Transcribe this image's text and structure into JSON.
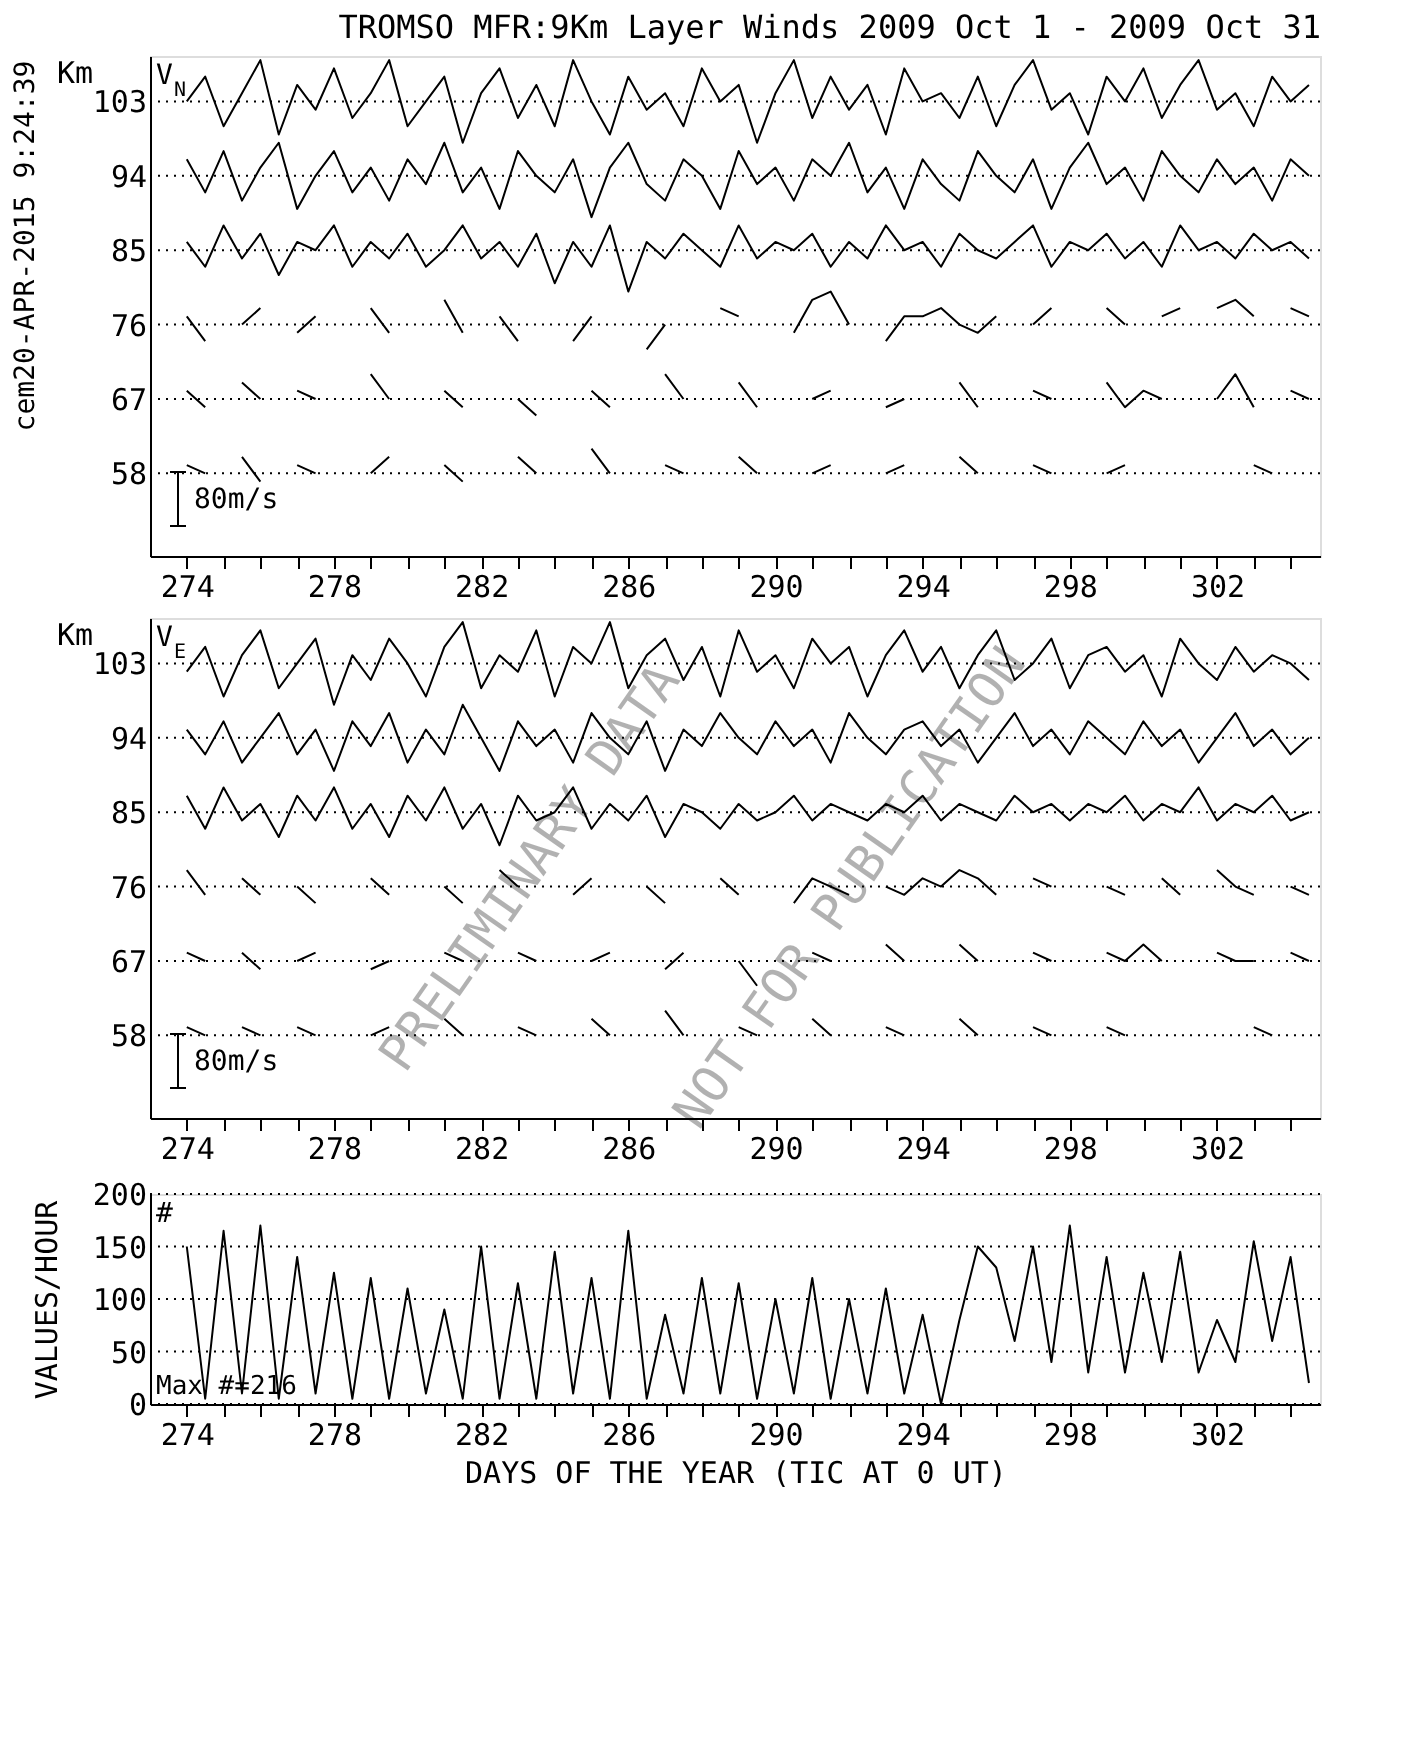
{
  "chart_data": [
    {
      "type": "line",
      "title": "TROMSO MFR:9Km Layer Winds 2009 Oct  1 - 2009 Oct 31",
      "ylabel": "Km",
      "grid": "y",
      "xlim": [
        273,
        304.8
      ],
      "ylim": [
        48,
        108.5
      ],
      "xticks": [
        274,
        {
          "value": 275,
          "label": null
        },
        {
          "value": 276,
          "label": null
        },
        {
          "value": 277,
          "label": null
        },
        278,
        {
          "value": 279,
          "label": null
        },
        {
          "value": 280,
          "label": null
        },
        {
          "value": 281,
          "label": null
        },
        282,
        {
          "value": 283,
          "label": null
        },
        {
          "value": 284,
          "label": null
        },
        {
          "value": 285,
          "label": null
        },
        286,
        {
          "value": 287,
          "label": null
        },
        {
          "value": 288,
          "label": null
        },
        {
          "value": 289,
          "label": null
        },
        290,
        {
          "value": 291,
          "label": null
        },
        {
          "value": 292,
          "label": null
        },
        {
          "value": 293,
          "label": null
        },
        294,
        {
          "value": 295,
          "label": null
        },
        {
          "value": 296,
          "label": null
        },
        {
          "value": 297,
          "label": null
        },
        298,
        {
          "value": 299,
          "label": null
        },
        {
          "value": 300,
          "label": null
        },
        {
          "value": 301,
          "label": null
        },
        302,
        {
          "value": 303,
          "label": null
        },
        {
          "value": 304,
          "label": null
        }
      ],
      "yticks": [
        58,
        67,
        76,
        85,
        94,
        103
      ],
      "annotations": [
        "cem20-APR-2015  9:24:39",
        "V$_{N}$",
        "80m/s"
      ],
      "x": [
        274,
        274.5,
        275,
        275.5,
        276,
        276.5,
        277,
        277.5,
        278,
        278.5,
        279,
        279.5,
        280,
        280.5,
        281,
        281.5,
        282,
        282.5,
        283,
        283.5,
        284,
        284.5,
        285,
        285.5,
        286,
        286.5,
        287,
        287.5,
        288,
        288.5,
        289,
        289.5,
        290,
        290.5,
        291,
        291.5,
        292,
        292.5,
        293,
        293.5,
        294,
        294.5,
        295,
        295.5,
        296,
        296.5,
        297,
        297.5,
        298,
        298.5,
        299,
        299.5,
        300,
        300.5,
        301,
        301.5,
        302,
        302.5,
        303,
        303.5,
        304,
        304.5
      ],
      "series": [
        {
          "color": "#000000",
          "values": [
            103,
            106,
            100,
            104,
            108,
            99,
            105,
            102,
            107,
            101,
            104,
            108,
            100,
            103,
            106,
            98,
            104,
            107,
            101,
            105,
            100,
            108,
            103,
            99,
            106,
            102,
            104,
            100,
            107,
            103,
            105,
            98,
            104,
            108,
            101,
            106,
            102,
            105,
            99,
            107,
            103,
            104,
            101,
            106,
            100,
            105,
            108,
            102,
            104,
            99,
            106,
            103,
            107,
            101,
            105,
            108,
            102,
            104,
            100,
            106,
            103,
            105
          ]
        },
        {
          "color": "#000000",
          "values": [
            96,
            92,
            97,
            91,
            95,
            98,
            90,
            94,
            97,
            92,
            95,
            91,
            96,
            93,
            98,
            92,
            95,
            90,
            97,
            94,
            92,
            96,
            89,
            95,
            98,
            93,
            91,
            96,
            94,
            90,
            97,
            93,
            95,
            91,
            96,
            94,
            98,
            92,
            95,
            90,
            96,
            93,
            91,
            97,
            94,
            92,
            96,
            90,
            95,
            98,
            93,
            95,
            91,
            97,
            94,
            92,
            96,
            93,
            95,
            91,
            96,
            94
          ]
        },
        {
          "color": "#000000",
          "values": [
            86,
            83,
            88,
            84,
            87,
            82,
            86,
            85,
            88,
            83,
            86,
            84,
            87,
            83,
            85,
            88,
            84,
            86,
            83,
            87,
            81,
            86,
            83,
            88,
            80,
            86,
            84,
            87,
            85,
            83,
            88,
            84,
            86,
            85,
            87,
            83,
            86,
            84,
            88,
            85,
            86,
            83,
            87,
            85,
            84,
            86,
            88,
            83,
            86,
            85,
            87,
            84,
            86,
            83,
            88,
            85,
            86,
            84,
            87,
            85,
            86,
            84
          ]
        },
        {
          "color": "#000000",
          "values": [
            77,
            74,
            null,
            76,
            78,
            null,
            75,
            77,
            null,
            null,
            78,
            75,
            null,
            null,
            79,
            75,
            null,
            77,
            74,
            null,
            null,
            74,
            77,
            null,
            null,
            73,
            76,
            null,
            null,
            78,
            77,
            null,
            null,
            75,
            79,
            80,
            76,
            null,
            74,
            77,
            77,
            78,
            76,
            75,
            77,
            null,
            76,
            78,
            null,
            null,
            78,
            76,
            null,
            77,
            78,
            null,
            78,
            79,
            77,
            null,
            78,
            77
          ]
        },
        {
          "color": "#000000",
          "values": [
            68,
            66,
            null,
            69,
            67,
            null,
            68,
            67,
            null,
            null,
            70,
            67,
            null,
            null,
            68,
            66,
            null,
            null,
            67,
            65,
            null,
            null,
            68,
            66,
            null,
            null,
            70,
            67,
            null,
            null,
            69,
            66,
            null,
            null,
            67,
            68,
            null,
            null,
            66,
            67,
            null,
            null,
            69,
            66,
            null,
            null,
            68,
            67,
            null,
            null,
            69,
            66,
            68,
            67,
            null,
            null,
            67,
            70,
            66,
            null,
            68,
            67
          ]
        },
        {
          "color": "#000000",
          "values": [
            59,
            58,
            null,
            60,
            57,
            null,
            59,
            58,
            null,
            null,
            58,
            60,
            null,
            null,
            59,
            57,
            null,
            null,
            60,
            58,
            null,
            null,
            61,
            58,
            null,
            null,
            59,
            58,
            null,
            null,
            60,
            58,
            null,
            null,
            58,
            59,
            null,
            null,
            58,
            59,
            null,
            null,
            60,
            58,
            null,
            null,
            59,
            58,
            null,
            null,
            58,
            59,
            null,
            null,
            null,
            null,
            null,
            null,
            59,
            58,
            null,
            null
          ]
        }
      ]
    },
    {
      "type": "line",
      "ylabel": "Km",
      "grid": "y",
      "xlim": [
        273,
        304.8
      ],
      "ylim": [
        48,
        108.5
      ],
      "xticks": [
        274,
        {
          "value": 275,
          "label": null
        },
        {
          "value": 276,
          "label": null
        },
        {
          "value": 277,
          "label": null
        },
        278,
        {
          "value": 279,
          "label": null
        },
        {
          "value": 280,
          "label": null
        },
        {
          "value": 281,
          "label": null
        },
        282,
        {
          "value": 283,
          "label": null
        },
        {
          "value": 284,
          "label": null
        },
        {
          "value": 285,
          "label": null
        },
        286,
        {
          "value": 287,
          "label": null
        },
        {
          "value": 288,
          "label": null
        },
        {
          "value": 289,
          "label": null
        },
        290,
        {
          "value": 291,
          "label": null
        },
        {
          "value": 292,
          "label": null
        },
        {
          "value": 293,
          "label": null
        },
        294,
        {
          "value": 295,
          "label": null
        },
        {
          "value": 296,
          "label": null
        },
        {
          "value": 297,
          "label": null
        },
        298,
        {
          "value": 299,
          "label": null
        },
        {
          "value": 300,
          "label": null
        },
        {
          "value": 301,
          "label": null
        },
        302,
        {
          "value": 303,
          "label": null
        },
        {
          "value": 304,
          "label": null
        }
      ],
      "yticks": [
        58,
        67,
        76,
        85,
        94,
        103
      ],
      "annotations": [
        "V$_{E}$",
        "80m/s",
        "PRELIMINARY DATA",
        "NOT FOR PUBLICATION"
      ],
      "x": [
        274,
        274.5,
        275,
        275.5,
        276,
        276.5,
        277,
        277.5,
        278,
        278.5,
        279,
        279.5,
        280,
        280.5,
        281,
        281.5,
        282,
        282.5,
        283,
        283.5,
        284,
        284.5,
        285,
        285.5,
        286,
        286.5,
        287,
        287.5,
        288,
        288.5,
        289,
        289.5,
        290,
        290.5,
        291,
        291.5,
        292,
        292.5,
        293,
        293.5,
        294,
        294.5,
        295,
        295.5,
        296,
        296.5,
        297,
        297.5,
        298,
        298.5,
        299,
        299.5,
        300,
        300.5,
        301,
        301.5,
        302,
        302.5,
        303,
        303.5,
        304,
        304.5
      ],
      "series": [
        {
          "color": "#000000",
          "values": [
            102,
            105,
            99,
            104,
            107,
            100,
            103,
            106,
            98,
            104,
            101,
            106,
            103,
            99,
            105,
            108,
            100,
            104,
            102,
            107,
            99,
            105,
            103,
            108,
            100,
            104,
            106,
            101,
            105,
            99,
            107,
            102,
            104,
            100,
            106,
            103,
            105,
            99,
            104,
            107,
            102,
            105,
            100,
            104,
            107,
            101,
            103,
            106,
            100,
            104,
            105,
            102,
            104,
            99,
            106,
            103,
            101,
            105,
            102,
            104,
            103,
            101
          ]
        },
        {
          "color": "#000000",
          "values": [
            95,
            92,
            96,
            91,
            94,
            97,
            92,
            95,
            90,
            96,
            93,
            97,
            91,
            95,
            92,
            98,
            94,
            90,
            96,
            93,
            95,
            91,
            97,
            94,
            92,
            96,
            90,
            95,
            93,
            97,
            94,
            92,
            96,
            93,
            95,
            91,
            97,
            94,
            92,
            95,
            96,
            93,
            95,
            91,
            94,
            97,
            93,
            95,
            92,
            96,
            94,
            92,
            96,
            93,
            95,
            91,
            94,
            97,
            93,
            95,
            92,
            94
          ]
        },
        {
          "color": "#000000",
          "values": [
            87,
            83,
            88,
            84,
            86,
            82,
            87,
            84,
            88,
            83,
            86,
            82,
            87,
            84,
            88,
            83,
            86,
            81,
            87,
            84,
            85,
            88,
            83,
            86,
            84,
            87,
            82,
            86,
            85,
            83,
            86,
            84,
            85,
            87,
            84,
            86,
            85,
            84,
            86,
            85,
            87,
            84,
            86,
            85,
            84,
            87,
            85,
            86,
            84,
            86,
            85,
            87,
            84,
            86,
            85,
            88,
            84,
            86,
            85,
            87,
            84,
            85
          ]
        },
        {
          "color": "#000000",
          "values": [
            78,
            75,
            null,
            77,
            75,
            null,
            76,
            74,
            null,
            null,
            77,
            75,
            null,
            null,
            76,
            74,
            null,
            78,
            76,
            null,
            null,
            75,
            77,
            null,
            null,
            76,
            74,
            null,
            null,
            77,
            75,
            null,
            null,
            74,
            77,
            76,
            75,
            null,
            76,
            75,
            77,
            76,
            78,
            77,
            75,
            null,
            77,
            76,
            null,
            null,
            76,
            75,
            null,
            77,
            75,
            null,
            78,
            76,
            75,
            null,
            76,
            75
          ]
        },
        {
          "color": "#000000",
          "values": [
            68,
            67,
            null,
            68,
            66,
            null,
            67,
            68,
            null,
            null,
            66,
            67,
            null,
            null,
            68,
            67,
            null,
            null,
            68,
            67,
            null,
            null,
            67,
            68,
            null,
            null,
            66,
            68,
            null,
            null,
            67,
            64,
            null,
            null,
            68,
            67,
            null,
            null,
            69,
            67,
            null,
            null,
            69,
            67,
            null,
            null,
            68,
            67,
            null,
            null,
            68,
            67,
            69,
            67,
            null,
            null,
            68,
            67,
            67,
            null,
            68,
            67
          ]
        },
        {
          "color": "#000000",
          "values": [
            59,
            58,
            null,
            59,
            58,
            null,
            59,
            58,
            null,
            null,
            58,
            59,
            null,
            null,
            60,
            58,
            null,
            null,
            59,
            58,
            null,
            null,
            60,
            58,
            null,
            null,
            61,
            58,
            null,
            null,
            59,
            58,
            null,
            null,
            60,
            58,
            null,
            null,
            59,
            58,
            null,
            null,
            60,
            58,
            null,
            null,
            59,
            58,
            null,
            null,
            59,
            58,
            null,
            null,
            null,
            null,
            null,
            null,
            59,
            58,
            null,
            null
          ]
        }
      ]
    },
    {
      "type": "line",
      "xlabel": "DAYS OF THE YEAR (TIC AT 0 UT)",
      "ylabel": "VALUES/HOUR",
      "grid": "y",
      "xlim": [
        273,
        304.8
      ],
      "ylim": [
        0,
        200
      ],
      "xticks": [
        274,
        {
          "value": 275,
          "label": null
        },
        {
          "value": 276,
          "label": null
        },
        {
          "value": 277,
          "label": null
        },
        278,
        {
          "value": 279,
          "label": null
        },
        {
          "value": 280,
          "label": null
        },
        {
          "value": 281,
          "label": null
        },
        282,
        {
          "value": 283,
          "label": null
        },
        {
          "value": 284,
          "label": null
        },
        {
          "value": 285,
          "label": null
        },
        286,
        {
          "value": 287,
          "label": null
        },
        {
          "value": 288,
          "label": null
        },
        {
          "value": 289,
          "label": null
        },
        290,
        {
          "value": 291,
          "label": null
        },
        {
          "value": 292,
          "label": null
        },
        {
          "value": 293,
          "label": null
        },
        294,
        {
          "value": 295,
          "label": null
        },
        {
          "value": 296,
          "label": null
        },
        {
          "value": 297,
          "label": null
        },
        298,
        {
          "value": 299,
          "label": null
        },
        {
          "value": 300,
          "label": null
        },
        {
          "value": 301,
          "label": null
        },
        302,
        {
          "value": 303,
          "label": null
        },
        {
          "value": 304,
          "label": null
        }
      ],
      "yticks": [
        0,
        50,
        100,
        150,
        200
      ],
      "annotations": [
        "#",
        "Max #=216"
      ],
      "x": [
        274,
        274.5,
        275,
        275.5,
        276,
        276.5,
        277,
        277.5,
        278,
        278.5,
        279,
        279.5,
        280,
        280.5,
        281,
        281.5,
        282,
        282.5,
        283,
        283.5,
        284,
        284.5,
        285,
        285.5,
        286,
        286.5,
        287,
        287.5,
        288,
        288.5,
        289,
        289.5,
        290,
        290.5,
        291,
        291.5,
        292,
        292.5,
        293,
        293.5,
        294,
        294.5,
        295,
        295.5,
        296,
        296.5,
        297,
        297.5,
        298,
        298.5,
        299,
        299.5,
        300,
        300.5,
        301,
        301.5,
        302,
        302.5,
        303,
        303.5,
        304,
        304.5
      ],
      "series": [
        {
          "color": "#000000",
          "values": [
            150,
            5,
            165,
            10,
            170,
            5,
            140,
            10,
            125,
            5,
            120,
            5,
            110,
            10,
            90,
            5,
            150,
            5,
            115,
            5,
            145,
            10,
            120,
            5,
            165,
            5,
            85,
            10,
            120,
            10,
            115,
            5,
            100,
            10,
            120,
            5,
            100,
            10,
            110,
            10,
            85,
            0,
            80,
            150,
            130,
            60,
            150,
            40,
            170,
            30,
            140,
            30,
            125,
            40,
            145,
            30,
            80,
            40,
            155,
            60,
            140,
            20
          ]
        }
      ]
    }
  ]
}
